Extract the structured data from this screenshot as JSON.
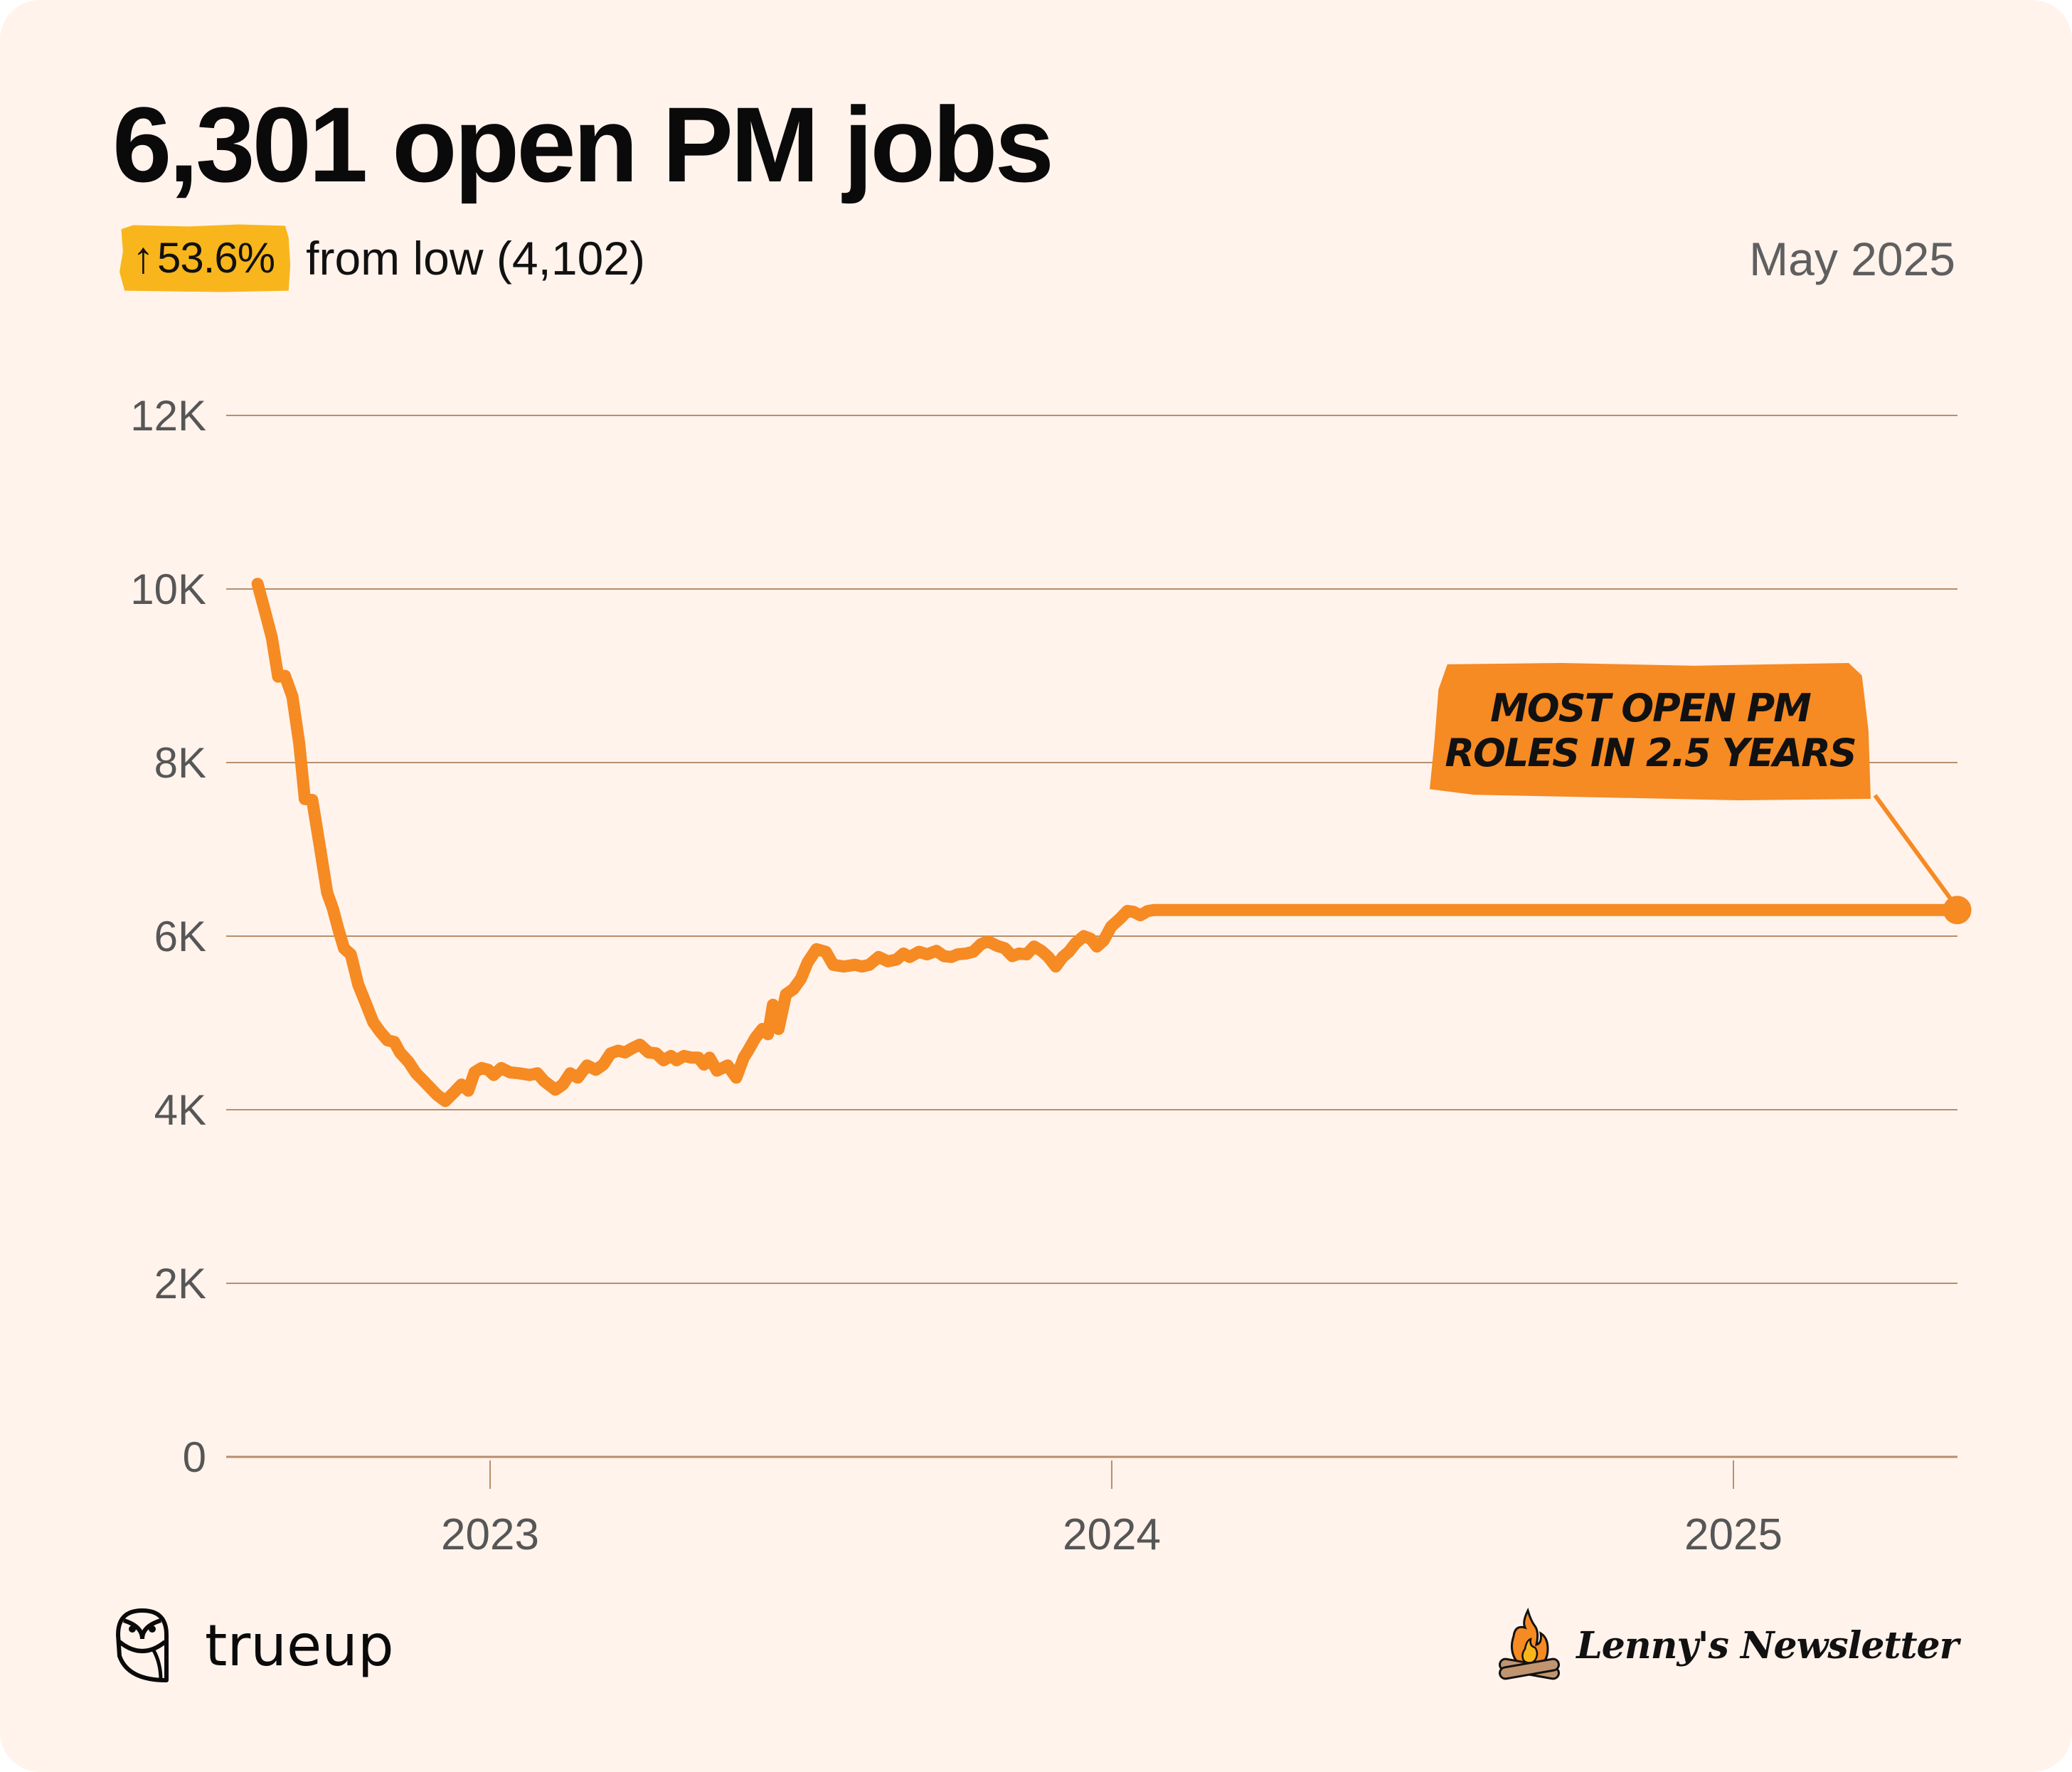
{
  "header": {
    "title": "6,301 open PM jobs",
    "badge": {
      "arrow": "↑",
      "value": "53.6%",
      "color": "#f8b61c"
    },
    "subtitle": "from low (4,102)",
    "date": "May 2025"
  },
  "annotation": {
    "line1": "Most open PM",
    "line2": "roles in 2.5 years",
    "color": "#f68a23"
  },
  "footer": {
    "left_brand": "trueup",
    "left_logo_icon": "owl-icon",
    "right_brand": "Lenny's Newsletter",
    "right_logo_icon": "campfire-icon"
  },
  "colors": {
    "background": "#fff3ec",
    "line": "#f68a23",
    "grid": "#b88e6a",
    "tick_text": "#565656"
  },
  "chart_data": {
    "type": "line",
    "title": "6,301 open PM jobs",
    "xlabel": "",
    "ylabel": "",
    "ylim": [
      0,
      12000
    ],
    "yticks": [
      0,
      2000,
      4000,
      6000,
      8000,
      10000,
      12000
    ],
    "ytick_labels": [
      "0",
      "2K",
      "4K",
      "6K",
      "8K",
      "10K",
      "12K"
    ],
    "xlim": [
      2022.545,
      2025.45
    ],
    "xticks": [
      2023,
      2024,
      2025
    ],
    "xtick_labels": [
      "2023",
      "2024",
      "2025"
    ],
    "grid": "horizontal",
    "legend": "none",
    "annotation": {
      "text": "Most open PM roles in 2.5 years",
      "x": 2025.36,
      "y": 6301
    },
    "series": [
      {
        "name": "Open PM jobs",
        "x": [
          2022.626,
          2022.638,
          2022.649,
          2022.659,
          2022.67,
          2022.682,
          2022.693,
          2022.702,
          2022.714,
          2022.726,
          2022.738,
          2022.747,
          2022.756,
          2022.765,
          2022.776,
          2022.788,
          2022.801,
          2022.812,
          2022.823,
          2022.835,
          2022.846,
          2022.855,
          2022.869,
          2022.881,
          2022.892,
          2022.904,
          2022.915,
          2022.928,
          2022.942,
          2022.954,
          2022.965,
          2022.975,
          2022.986,
          2022.997,
          2023.006,
          2023.018,
          2023.032,
          2023.047,
          2023.064,
          2023.076,
          2023.087,
          2023.105,
          2023.117,
          2023.129,
          2023.141,
          2023.156,
          2023.17,
          2023.182,
          2023.194,
          2023.206,
          2023.217,
          2023.229,
          2023.241,
          2023.255,
          2023.267,
          2023.279,
          2023.291,
          2023.3,
          2023.312,
          2023.324,
          2023.335,
          2023.344,
          2023.353,
          2023.365,
          2023.382,
          2023.396,
          2023.408,
          2023.415,
          2023.427,
          2023.438,
          2023.447,
          2023.455,
          2023.464,
          2023.476,
          2023.488,
          2023.5,
          2023.511,
          2023.525,
          2023.54,
          2023.552,
          2023.569,
          2023.587,
          2023.598,
          2023.61,
          2023.625,
          2023.64,
          2023.654,
          2023.665,
          2023.675,
          2023.69,
          2023.703,
          2023.718,
          2023.73,
          2023.742,
          2023.752,
          2023.766,
          2023.777,
          2023.79,
          2023.801,
          2023.815,
          2023.828,
          2023.84,
          2023.851,
          2023.863,
          2023.875,
          2023.887,
          2023.898,
          2023.91,
          2023.921,
          2023.931,
          2023.942,
          2023.955,
          2023.966,
          2023.976,
          2023.987,
          2023.999,
          2024.013,
          2024.025,
          2024.035,
          2024.046,
          2024.058,
          2024.068,
          2024.08,
          2024.09,
          2024.099,
          2024.111,
          2024.123,
          2024.135,
          2024.147,
          2024.157,
          2024.17,
          2024.181,
          2024.193,
          2024.204,
          2024.217,
          2024.227,
          2024.238,
          2024.249,
          2024.26,
          2024.271,
          2024.285,
          2024.298,
          2024.31,
          2024.322,
          2024.333
        ],
        "values": [
          10060,
          9740,
          9440,
          8990,
          9000,
          8760,
          8220,
          7580,
          7570,
          7040,
          6500,
          6320,
          6080,
          5860,
          5790,
          5440,
          5210,
          5010,
          4900,
          4800,
          4780,
          4660,
          4550,
          4420,
          4340,
          4250,
          4170,
          4100,
          4200,
          4290,
          4220,
          4430,
          4480,
          4460,
          4400,
          4480,
          4430,
          4420,
          4400,
          4420,
          4330,
          4230,
          4290,
          4420,
          4370,
          4510,
          4460,
          4520,
          4650,
          4680,
          4660,
          4710,
          4750,
          4660,
          4650,
          4570,
          4620,
          4570,
          4620,
          4600,
          4600,
          4520,
          4600,
          4450,
          4510,
          4370,
          4600,
          4680,
          4830,
          4930,
          4870,
          5210,
          4930,
          5330,
          5390,
          5510,
          5700,
          5850,
          5820,
          5670,
          5650,
          5670,
          5650,
          5670,
          5760,
          5710,
          5730,
          5800,
          5760,
          5820,
          5790,
          5830,
          5770,
          5760,
          5790,
          5800,
          5820,
          5910,
          5940,
          5890,
          5860,
          5770,
          5800,
          5790,
          5880,
          5830,
          5760,
          5650,
          5760,
          5820,
          5920,
          6000,
          5970,
          5880,
          5950,
          6110,
          6200,
          6290,
          6280,
          6240,
          6290,
          6301,
          6301,
          6301,
          6301,
          6301,
          6301,
          6301,
          6301,
          6301,
          6301,
          6301,
          6301,
          6301,
          6301,
          6301,
          6301,
          6301,
          6301,
          6301,
          6301,
          6301,
          6301,
          6301,
          6301
        ],
        "end_point": 6301
      }
    ]
  }
}
